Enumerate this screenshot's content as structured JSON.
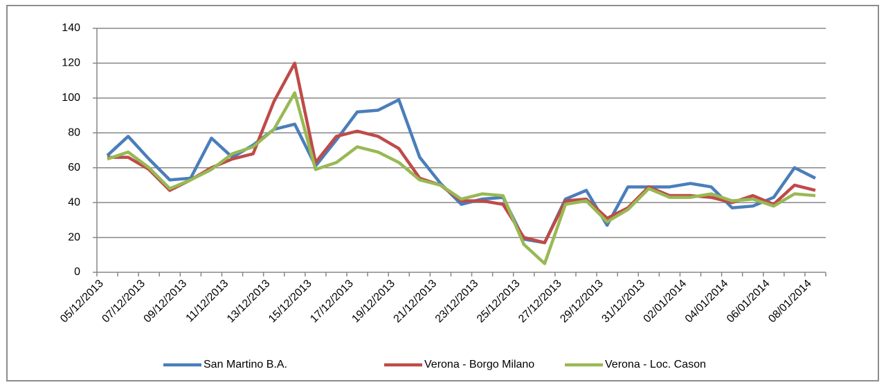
{
  "chart_data": {
    "type": "line",
    "categories": [
      "05/12/2013",
      null,
      "07/12/2013",
      null,
      "09/12/2013",
      null,
      "11/12/2013",
      null,
      "13/12/2013",
      null,
      "15/12/2013",
      null,
      "17/12/2013",
      null,
      "19/12/2013",
      null,
      "21/12/2013",
      null,
      "23/12/2013",
      null,
      "25/12/2013",
      null,
      "27/12/2013",
      null,
      "29/12/2013",
      null,
      "31/12/2013",
      null,
      "02/01/2014",
      null,
      "04/01/2014",
      null,
      "06/01/2014",
      null,
      "08/01/2014"
    ],
    "series": [
      {
        "name": "San Martino B.A.",
        "color": "#4a7ebb",
        "values": [
          67,
          78,
          65,
          53,
          54,
          77,
          66,
          73,
          82,
          85,
          61,
          76,
          92,
          93,
          99,
          66,
          51,
          39,
          42,
          43,
          19,
          17,
          42,
          47,
          27,
          49,
          49,
          49,
          51,
          49,
          37,
          38,
          43,
          60,
          54
        ]
      },
      {
        "name": "Verona - Borgo Milano",
        "color": "#be4b48",
        "values": [
          66,
          66,
          59,
          47,
          53,
          60,
          65,
          68,
          98,
          120,
          63,
          78,
          81,
          78,
          71,
          54,
          50,
          41,
          41,
          39,
          20,
          17,
          41,
          42,
          31,
          37,
          49,
          44,
          44,
          43,
          40,
          44,
          39,
          50,
          47
        ]
      },
      {
        "name": "Verona - Loc. Cason",
        "color": "#98b954",
        "values": [
          65,
          69,
          60,
          48,
          53,
          59,
          68,
          72,
          82,
          103,
          59,
          63,
          72,
          69,
          63,
          53,
          50,
          42,
          45,
          44,
          16,
          5,
          39,
          41,
          29,
          36,
          48,
          43,
          43,
          45,
          41,
          42,
          38,
          45,
          44
        ]
      }
    ],
    "ylim": [
      0,
      140
    ],
    "yticks": [
      0,
      20,
      40,
      60,
      80,
      100,
      120,
      140
    ],
    "grid": true,
    "legend": "bottom"
  }
}
